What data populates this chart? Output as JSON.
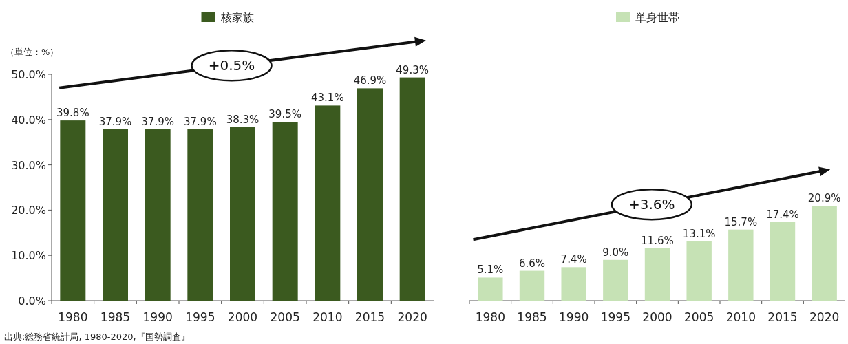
{
  "chart_data": [
    {
      "type": "bar",
      "ylabel": "（単位：%）",
      "categories": [
        "1980",
        "1985",
        "1990",
        "1995",
        "2000",
        "2005",
        "2010",
        "2015",
        "2020"
      ],
      "series": [
        {
          "name": "核家族",
          "color": "#3b5a1f",
          "values": [
            39.8,
            37.9,
            37.9,
            37.9,
            38.3,
            39.5,
            43.1,
            46.9,
            49.3
          ],
          "value_labels": [
            "39.8%",
            "37.9%",
            "37.9%",
            "37.9%",
            "38.3%",
            "39.5%",
            "43.1%",
            "46.9%",
            "49.3%"
          ]
        }
      ],
      "ylim": [
        0,
        50
      ],
      "yticks": [
        {
          "value": 0,
          "label": "0.0%"
        },
        {
          "value": 10,
          "label": "10.0%"
        },
        {
          "value": 20,
          "label": "20.0%"
        },
        {
          "value": 30,
          "label": "30.0%"
        },
        {
          "value": 40,
          "label": "40.0%"
        },
        {
          "value": 50,
          "label": "50.0%"
        }
      ],
      "legend": "top",
      "annotations": [
        "+0.5%",
        "出典:総務省統計局, 1980-2020,『国勢調査』"
      ]
    },
    {
      "type": "bar",
      "categories": [
        "1980",
        "1985",
        "1990",
        "1995",
        "2000",
        "2005",
        "2010",
        "2015",
        "2020"
      ],
      "series": [
        {
          "name": "単身世帯",
          "color": "#c6e2b5",
          "values": [
            5.1,
            6.6,
            7.4,
            9.0,
            11.6,
            13.1,
            15.7,
            17.4,
            20.9
          ],
          "value_labels": [
            "5.1%",
            "6.6%",
            "7.4%",
            "9.0%",
            "11.6%",
            "13.1%",
            "15.7%",
            "17.4%",
            "20.9%"
          ]
        }
      ],
      "ylim": [
        0,
        50
      ],
      "tick_labels": "x",
      "legend": "top",
      "annotations": [
        "+3.6%"
      ]
    }
  ]
}
